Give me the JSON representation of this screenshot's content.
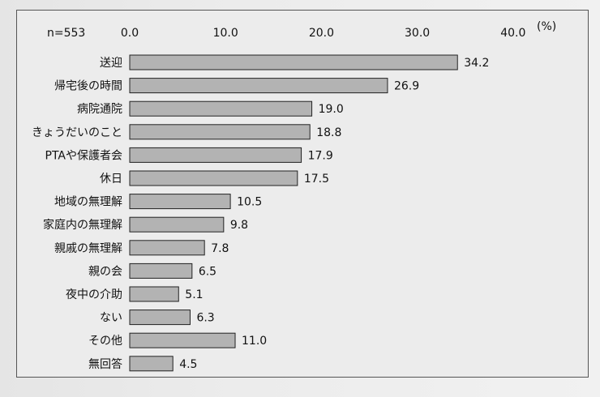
{
  "chart_data": {
    "type": "bar",
    "orientation": "horizontal",
    "sample_label": "n=553",
    "unit_label": "(%)",
    "x_ticks": [
      "0.0",
      "10.0",
      "20.0",
      "30.0",
      "40.0"
    ],
    "xlim": [
      0,
      40
    ],
    "categories": [
      "送迎",
      "帰宅後の時間",
      "病院通院",
      "きょうだいのこと",
      "PTAや保護者会",
      "休日",
      "地域の無理解",
      "家庭内の無理解",
      "親戚の無理解",
      "親の会",
      "夜中の介助",
      "ない",
      "その他",
      "無回答"
    ],
    "values": [
      34.2,
      26.9,
      19.0,
      18.8,
      17.9,
      17.5,
      10.5,
      9.8,
      7.8,
      6.5,
      5.1,
      6.3,
      11.0,
      4.5
    ],
    "value_labels": [
      "34.2",
      "26.9",
      "19.0",
      "18.8",
      "17.9",
      "17.5",
      "10.5",
      "9.8",
      "7.8",
      "6.5",
      "5.1",
      "6.3",
      "11.0",
      "4.5"
    ],
    "bar_color": "#b3b3b3",
    "bar_edge_color": "#222222",
    "grid": false
  }
}
